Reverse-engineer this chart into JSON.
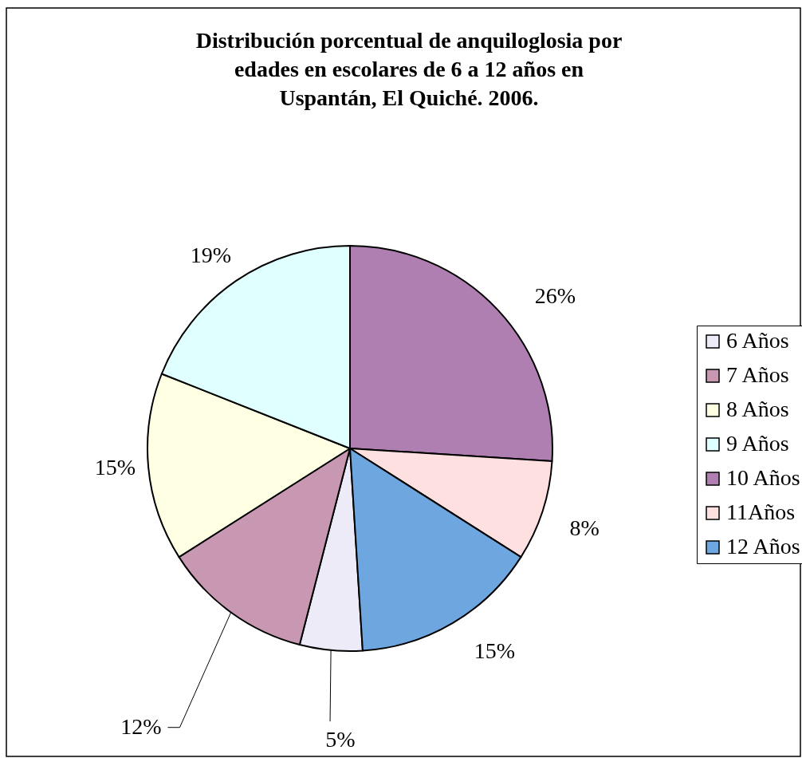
{
  "chart_data": {
    "type": "pie",
    "title": "Distribución porcentual de anquiloglosia por\nedades en escolares de 6 a 12 años en\nUspantán, El Quiché. 2006.",
    "categories": [
      "6 Años",
      "7 Años",
      "8 Años",
      "9 Años",
      "10 Años",
      "11Años",
      "12 Años"
    ],
    "values": [
      5,
      12,
      15,
      19,
      26,
      8,
      15
    ],
    "colors": [
      "#eeebf8",
      "#c898b3",
      "#ffffe3",
      "#e0ffff",
      "#ae7fb0",
      "#ffe0e0",
      "#6ea6e0"
    ],
    "value_labels": [
      "5%",
      "12%",
      "15%",
      "19%",
      "26%",
      "8%",
      "15%"
    ],
    "legend": "right"
  }
}
